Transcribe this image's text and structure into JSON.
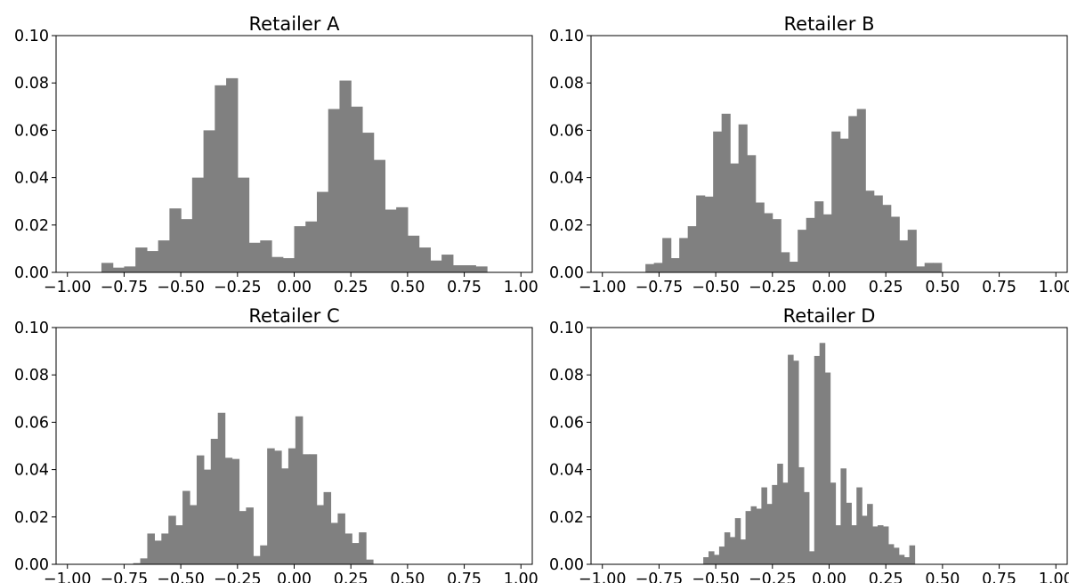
{
  "chart_data": [
    {
      "type": "bar",
      "title": "Retailer A",
      "xlabel": "",
      "ylabel": "",
      "xlim": [
        -1.05,
        1.05
      ],
      "ylim": [
        0,
        0.1
      ],
      "xticks": [
        "−1.00",
        "−0.75",
        "−0.50",
        "−0.25",
        "0.00",
        "0.25",
        "0.50",
        "0.75",
        "1.00"
      ],
      "yticks": [
        "0.00",
        "0.02",
        "0.04",
        "0.06",
        "0.08",
        "0.10"
      ],
      "grid": false,
      "bar_color": "#808080",
      "bin_start": -0.85,
      "bin_width": 0.05,
      "values": [
        0.004,
        0.002,
        0.0025,
        0.0105,
        0.009,
        0.0135,
        0.027,
        0.0225,
        0.04,
        0.06,
        0.079,
        0.082,
        0.04,
        0.0125,
        0.0135,
        0.0065,
        0.006,
        0.0195,
        0.0215,
        0.034,
        0.069,
        0.081,
        0.07,
        0.059,
        0.0475,
        0.0265,
        0.0275,
        0.0155,
        0.0105,
        0.005,
        0.0075,
        0.003,
        0.003,
        0.0025
      ]
    },
    {
      "type": "bar",
      "title": "Retailer B",
      "xlabel": "",
      "ylabel": "",
      "xlim": [
        -1.05,
        1.05
      ],
      "ylim": [
        0,
        0.1
      ],
      "xticks": [
        "−1.00",
        "−0.75",
        "−0.50",
        "−0.25",
        "0.00",
        "0.25",
        "0.50",
        "0.75",
        "1.00"
      ],
      "yticks": [
        "0.00",
        "0.02",
        "0.04",
        "0.06",
        "0.08",
        "0.10"
      ],
      "grid": false,
      "bar_color": "#808080",
      "bin_start": -0.81,
      "bin_width": 0.0373,
      "values": [
        0.0035,
        0.004,
        0.0145,
        0.006,
        0.0145,
        0.0195,
        0.0325,
        0.032,
        0.0595,
        0.067,
        0.046,
        0.0625,
        0.0495,
        0.0295,
        0.025,
        0.0225,
        0.0085,
        0.0045,
        0.018,
        0.023,
        0.03,
        0.0245,
        0.0595,
        0.0565,
        0.066,
        0.069,
        0.0345,
        0.0325,
        0.0285,
        0.0235,
        0.0135,
        0.018,
        0.0025,
        0.004,
        0.004
      ]
    },
    {
      "type": "bar",
      "title": "Retailer C",
      "xlabel": "",
      "ylabel": "",
      "xlim": [
        -1.05,
        1.05
      ],
      "ylim": [
        0,
        0.1
      ],
      "xticks": [
        "−1.00",
        "−0.75",
        "−0.50",
        "−0.25",
        "0.00",
        "0.25",
        "0.50",
        "0.75",
        "1.00"
      ],
      "yticks": [
        "0.00",
        "0.02",
        "0.04",
        "0.06",
        "0.08",
        "0.10"
      ],
      "grid": false,
      "bar_color": "#808080",
      "bin_start": -0.71,
      "bin_width": 0.0311,
      "values": [
        0.0005,
        0.0025,
        0.013,
        0.01,
        0.013,
        0.0205,
        0.0165,
        0.031,
        0.025,
        0.046,
        0.04,
        0.053,
        0.064,
        0.045,
        0.0445,
        0.0225,
        0.024,
        0.0035,
        0.008,
        0.049,
        0.048,
        0.0405,
        0.049,
        0.0625,
        0.0465,
        0.0465,
        0.025,
        0.0305,
        0.0175,
        0.0215,
        0.013,
        0.009,
        0.0135,
        0.002
      ]
    },
    {
      "type": "bar",
      "title": "Retailer D",
      "xlabel": "",
      "ylabel": "",
      "xlim": [
        -1.05,
        1.05
      ],
      "ylim": [
        0,
        0.1
      ],
      "xticks": [
        "−1.00",
        "−0.75",
        "−0.50",
        "−0.25",
        "0.00",
        "0.25",
        "0.50",
        "0.75",
        "1.00"
      ],
      "yticks": [
        "0.00",
        "0.02",
        "0.04",
        "0.06",
        "0.08",
        "0.10"
      ],
      "grid": false,
      "bar_color": "#808080",
      "bin_start": -0.555,
      "bin_width": 0.0233,
      "values": [
        0.003,
        0.0055,
        0.004,
        0.0075,
        0.0135,
        0.0115,
        0.0195,
        0.0105,
        0.0225,
        0.0245,
        0.0235,
        0.0325,
        0.0255,
        0.0335,
        0.0425,
        0.0345,
        0.0885,
        0.086,
        0.041,
        0.0305,
        0.0055,
        0.088,
        0.0935,
        0.081,
        0.0345,
        0.0165,
        0.0405,
        0.026,
        0.0165,
        0.0325,
        0.0205,
        0.0255,
        0.016,
        0.0165,
        0.016,
        0.0085,
        0.007,
        0.004,
        0.003,
        0.008
      ]
    }
  ]
}
